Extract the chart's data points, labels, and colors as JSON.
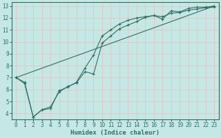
{
  "xlabel": "Humidex (Indice chaleur)",
  "background_color": "#c5e8e5",
  "grid_color": "#e0c8c8",
  "line_color": "#2e6e62",
  "xlim": [
    -0.5,
    23.5
  ],
  "ylim": [
    3.5,
    13.3
  ],
  "xticks": [
    0,
    1,
    2,
    3,
    4,
    5,
    6,
    7,
    8,
    9,
    10,
    11,
    12,
    13,
    14,
    15,
    16,
    17,
    18,
    19,
    20,
    21,
    22,
    23
  ],
  "yticks": [
    4,
    5,
    6,
    7,
    8,
    9,
    10,
    11,
    12,
    13
  ],
  "line1_x": [
    0,
    1,
    2,
    3,
    4,
    5,
    6,
    7,
    8,
    9,
    10,
    11,
    12,
    13,
    14,
    15,
    16,
    17,
    18,
    19,
    20,
    21,
    22,
    23
  ],
  "line1_y": [
    7.0,
    6.6,
    3.7,
    4.3,
    4.4,
    5.9,
    6.2,
    6.6,
    7.8,
    8.9,
    10.5,
    11.0,
    11.5,
    11.8,
    12.0,
    12.1,
    12.2,
    11.9,
    12.6,
    12.5,
    12.8,
    12.9,
    12.9,
    13.0
  ],
  "line2_x": [
    0,
    1,
    2,
    3,
    4,
    5,
    6,
    7,
    8,
    9,
    10,
    11,
    12,
    13,
    14,
    15,
    16,
    17,
    18,
    19,
    20,
    21,
    22,
    23
  ],
  "line2_y": [
    7.0,
    6.5,
    3.7,
    4.3,
    4.55,
    5.8,
    6.25,
    6.55,
    7.5,
    7.3,
    9.9,
    10.5,
    11.1,
    11.4,
    11.7,
    12.05,
    12.2,
    12.1,
    12.4,
    12.45,
    12.65,
    12.75,
    12.85,
    12.9
  ],
  "line3_x": [
    0,
    23
  ],
  "line3_y": [
    7.0,
    13.0
  ]
}
